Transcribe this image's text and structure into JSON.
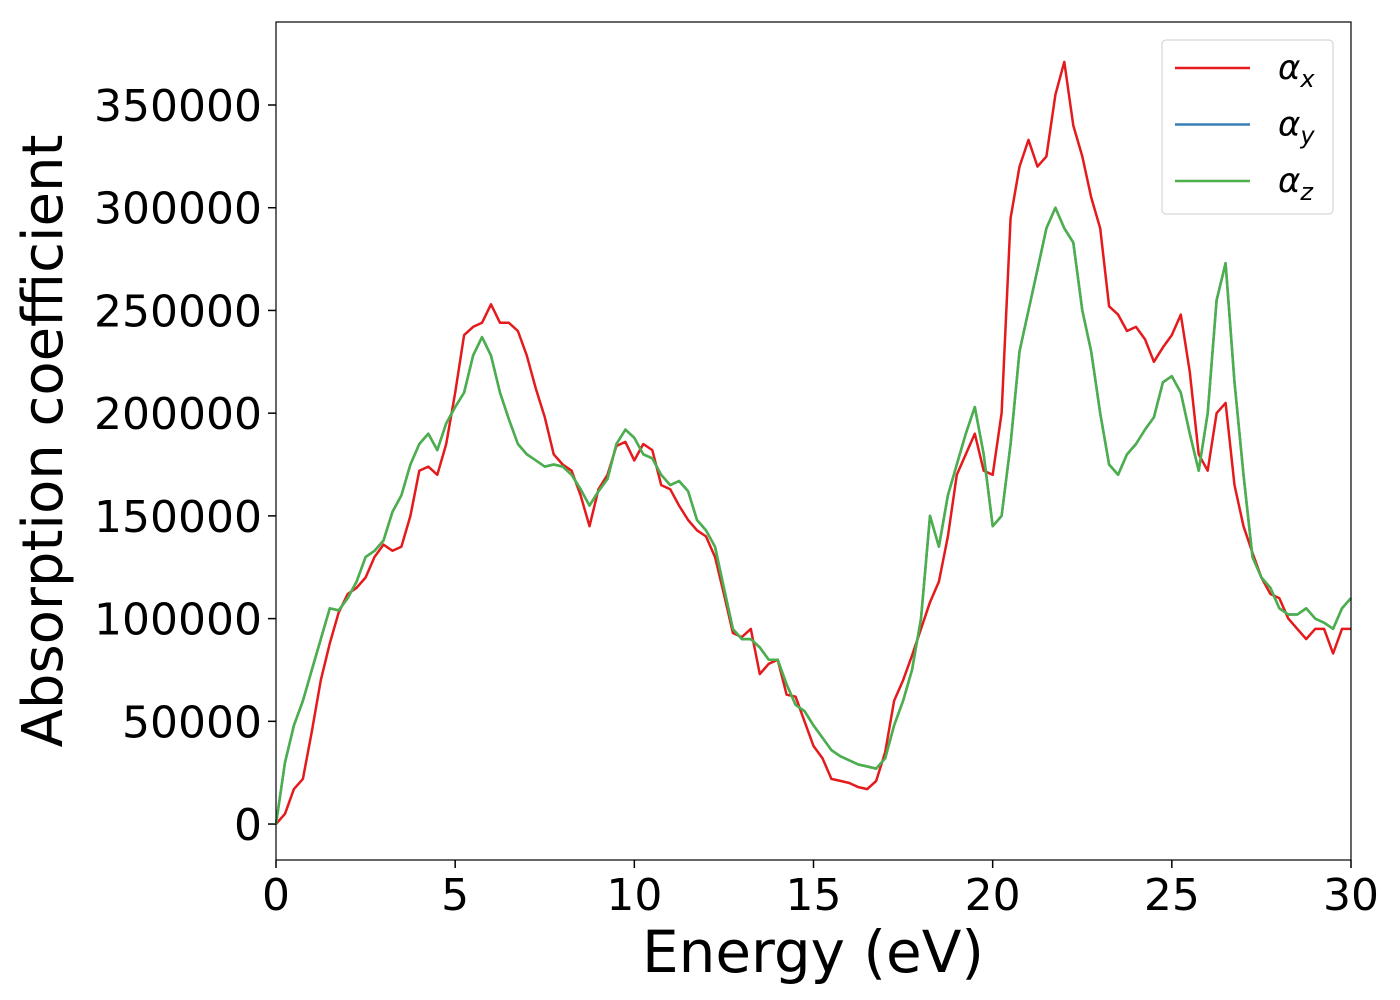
{
  "chart_data": {
    "type": "line",
    "xlabel": "Energy (eV)",
    "ylabel": "Absorption coefficient",
    "xlim": [
      0,
      30
    ],
    "xticks": [
      0,
      5,
      10,
      15,
      20,
      25,
      30
    ],
    "ylim": [
      -17500,
      390400
    ],
    "yticks": [
      0,
      50000,
      100000,
      150000,
      200000,
      250000,
      300000,
      350000
    ],
    "legend": "upper right",
    "x": [
      0,
      0.25,
      0.5,
      0.75,
      1,
      1.25,
      1.5,
      1.75,
      2,
      2.25,
      2.5,
      2.75,
      3,
      3.25,
      3.5,
      3.75,
      4,
      4.25,
      4.5,
      4.75,
      5,
      5.25,
      5.5,
      5.75,
      6,
      6.25,
      6.5,
      6.75,
      7,
      7.25,
      7.5,
      7.75,
      8,
      8.25,
      8.5,
      8.75,
      9,
      9.25,
      9.5,
      9.75,
      10,
      10.25,
      10.5,
      10.75,
      11,
      11.25,
      11.5,
      11.75,
      12,
      12.25,
      12.5,
      12.75,
      13,
      13.25,
      13.5,
      13.75,
      14,
      14.25,
      14.5,
      14.75,
      15,
      15.25,
      15.5,
      15.75,
      16,
      16.25,
      16.5,
      16.75,
      17,
      17.25,
      17.5,
      17.75,
      18,
      18.25,
      18.5,
      18.75,
      19,
      19.25,
      19.5,
      19.75,
      20,
      20.25,
      20.5,
      20.75,
      21,
      21.25,
      21.5,
      21.75,
      22,
      22.25,
      22.5,
      22.75,
      23,
      23.25,
      23.5,
      23.75,
      24,
      24.25,
      24.5,
      24.75,
      25,
      25.25,
      25.5,
      25.75,
      26,
      26.25,
      26.5,
      26.75,
      27,
      27.25,
      27.5,
      27.75,
      28,
      28.25,
      28.5,
      28.75,
      29,
      29.25,
      29.5,
      29.75,
      30
    ],
    "series": [
      {
        "name": "αx",
        "color": "#e41a1c",
        "values": [
          0,
          5000,
          17000,
          22000,
          45000,
          70000,
          88000,
          103000,
          112000,
          115000,
          120000,
          130000,
          136000,
          133000,
          135000,
          150000,
          172000,
          174000,
          170000,
          185000,
          210000,
          238000,
          242000,
          244000,
          253000,
          244000,
          244000,
          240000,
          228000,
          212000,
          198000,
          180000,
          175000,
          172000,
          160000,
          145000,
          163000,
          170000,
          184000,
          186000,
          177000,
          185000,
          182000,
          165000,
          163000,
          155000,
          148000,
          143000,
          140000,
          130000,
          112000,
          93000,
          91000,
          95000,
          73000,
          78000,
          80000,
          63000,
          62000,
          50000,
          38000,
          32000,
          22000,
          21000,
          20000,
          18000,
          17000,
          21000,
          35000,
          60000,
          70000,
          82000,
          95000,
          108000,
          118000,
          140000,
          170000,
          180000,
          190000,
          172000,
          170000,
          200000,
          295000,
          320000,
          333000,
          320000,
          325000,
          355000,
          371000,
          340000,
          325000,
          305000,
          290000,
          252000,
          248000,
          240000,
          242000,
          236000,
          225000,
          232000,
          238000,
          248000,
          220000,
          180000,
          172000,
          200000,
          205000,
          165000,
          145000,
          132000,
          120000,
          112000,
          110000,
          100000,
          95000,
          90000,
          95000,
          95000,
          83000,
          95000,
          95000
        ]
      },
      {
        "name": "αy",
        "color": "#377eb8",
        "values": [
          0,
          30000,
          48000,
          60000,
          75000,
          90000,
          105000,
          104000,
          110000,
          118000,
          130000,
          133000,
          138000,
          152000,
          160000,
          175000,
          185000,
          190000,
          182000,
          195000,
          203000,
          210000,
          228000,
          237000,
          228000,
          210000,
          197000,
          185000,
          180000,
          177000,
          174000,
          175000,
          174000,
          170000,
          163000,
          155000,
          162000,
          168000,
          185000,
          192000,
          188000,
          180000,
          178000,
          170000,
          165000,
          167000,
          162000,
          148000,
          143000,
          135000,
          115000,
          95000,
          90000,
          90000,
          86000,
          80000,
          80000,
          68000,
          58000,
          55000,
          48000,
          42000,
          36000,
          33000,
          31000,
          29000,
          28000,
          27000,
          32000,
          48000,
          60000,
          75000,
          100000,
          150000,
          135000,
          160000,
          175000,
          190000,
          203000,
          180000,
          145000,
          150000,
          185000,
          230000,
          250000,
          270000,
          290000,
          300000,
          290000,
          283000,
          250000,
          230000,
          200000,
          175000,
          170000,
          180000,
          185000,
          192000,
          198000,
          215000,
          218000,
          210000,
          190000,
          172000,
          200000,
          255000,
          273000,
          215000,
          170000,
          130000,
          120000,
          115000,
          105000,
          102000,
          102000,
          105000,
          100000,
          98000,
          95000,
          105000,
          110000
        ]
      },
      {
        "name": "αz",
        "color": "#4daf4a",
        "values": [
          0,
          30000,
          48000,
          60000,
          75000,
          90000,
          105000,
          104000,
          110000,
          118000,
          130000,
          133000,
          138000,
          152000,
          160000,
          175000,
          185000,
          190000,
          182000,
          195000,
          203000,
          210000,
          228000,
          237000,
          228000,
          210000,
          197000,
          185000,
          180000,
          177000,
          174000,
          175000,
          174000,
          170000,
          163000,
          155000,
          162000,
          168000,
          185000,
          192000,
          188000,
          180000,
          178000,
          170000,
          165000,
          167000,
          162000,
          148000,
          143000,
          135000,
          115000,
          95000,
          90000,
          90000,
          86000,
          80000,
          80000,
          68000,
          58000,
          55000,
          48000,
          42000,
          36000,
          33000,
          31000,
          29000,
          28000,
          27000,
          32000,
          48000,
          60000,
          75000,
          100000,
          150000,
          135000,
          160000,
          175000,
          190000,
          203000,
          180000,
          145000,
          150000,
          185000,
          230000,
          250000,
          270000,
          290000,
          300000,
          290000,
          283000,
          250000,
          230000,
          200000,
          175000,
          170000,
          180000,
          185000,
          192000,
          198000,
          215000,
          218000,
          210000,
          190000,
          172000,
          200000,
          255000,
          273000,
          215000,
          170000,
          130000,
          120000,
          115000,
          105000,
          102000,
          102000,
          105000,
          100000,
          98000,
          95000,
          105000,
          110000
        ]
      }
    ]
  }
}
